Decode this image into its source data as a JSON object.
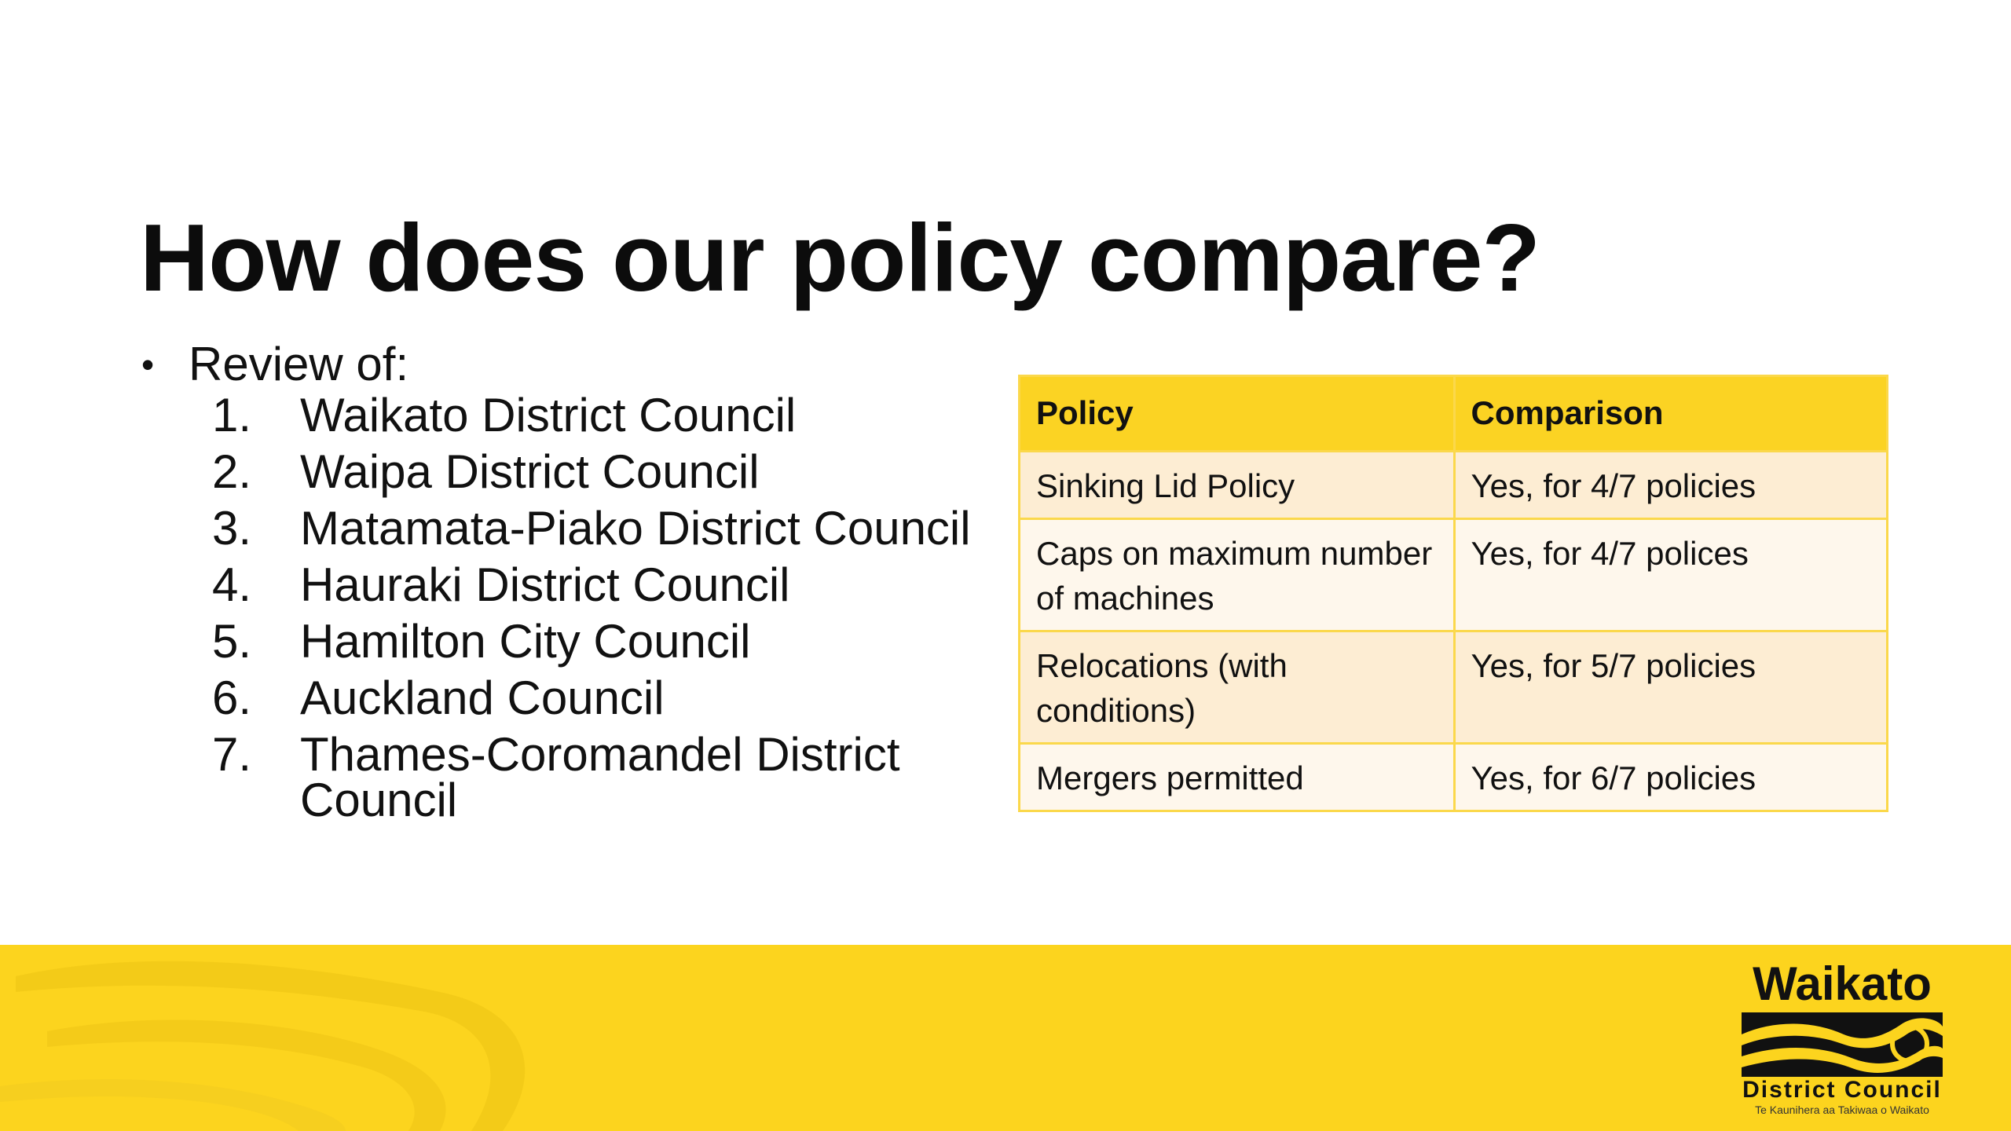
{
  "slide": {
    "title": "How does our policy compare?",
    "bullet": "•",
    "review_label": "Review of:",
    "councils": [
      {
        "num": "1.",
        "name": "Waikato District Council"
      },
      {
        "num": "2.",
        "name": "Waipa District Council"
      },
      {
        "num": "3.",
        "name": "Matamata-Piako District Council"
      },
      {
        "num": "4.",
        "name": "Hauraki District Council"
      },
      {
        "num": "5.",
        "name": "Hamilton City Council"
      },
      {
        "num": "6.",
        "name": "Auckland Council"
      },
      {
        "num": "7.",
        "name": "Thames-Coromandel District Council"
      }
    ]
  },
  "table": {
    "headers": [
      "Policy",
      "Comparison"
    ],
    "rows": [
      [
        "Sinking Lid Policy",
        "Yes, for 4/7 policies"
      ],
      [
        "Caps on maximum number of machines",
        "Yes, for 4/7 polices"
      ],
      [
        "Relocations (with conditions)",
        "Yes, for 5/7 policies"
      ],
      [
        "Mergers permitted",
        "Yes, for 6/7 policies"
      ]
    ]
  },
  "footer": {
    "logo_top": "Waikato",
    "logo_bottom": "District Council",
    "logo_sub": "Te Kaunihera aa Takiwaa o Waikato"
  },
  "colors": {
    "accent_yellow": "#fcd41e",
    "table_header": "#fbd323",
    "row_odd": "#fdedd3",
    "row_even": "#fef7ec"
  }
}
